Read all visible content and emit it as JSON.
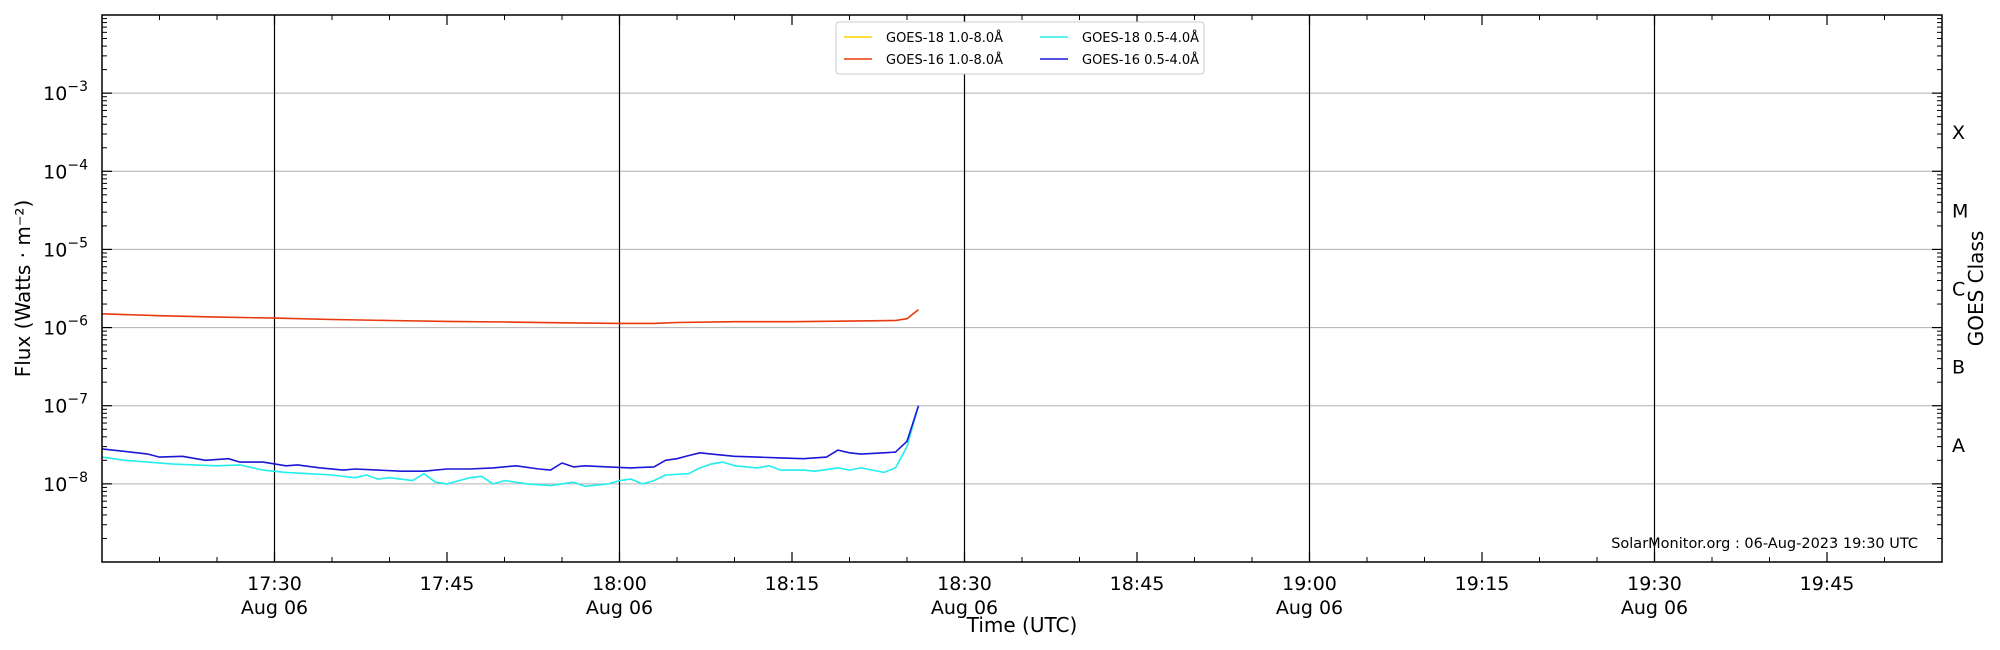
{
  "chart_data": {
    "type": "line",
    "xlabel": "Time (UTC)",
    "ylabel": "Flux (Watts · m⁻²)",
    "y2label": "GOES Class",
    "yscale": "log",
    "ylim": [
      1e-09,
      0.01
    ],
    "xlim": [
      "17:15",
      "19:55"
    ],
    "grid": "horizontal at decades, vertical at half-hours",
    "legend_position": "top-center",
    "x_ticks": [
      {
        "time": "17:30",
        "label": "17:30",
        "sublabel": "Aug 06"
      },
      {
        "time": "17:45",
        "label": "17:45",
        "sublabel": ""
      },
      {
        "time": "18:00",
        "label": "18:00",
        "sublabel": "Aug 06"
      },
      {
        "time": "18:15",
        "label": "18:15",
        "sublabel": ""
      },
      {
        "time": "18:30",
        "label": "18:30",
        "sublabel": "Aug 06"
      },
      {
        "time": "18:45",
        "label": "18:45",
        "sublabel": ""
      },
      {
        "time": "19:00",
        "label": "19:00",
        "sublabel": "Aug 06"
      },
      {
        "time": "19:15",
        "label": "19:15",
        "sublabel": ""
      },
      {
        "time": "19:30",
        "label": "19:30",
        "sublabel": "Aug 06"
      },
      {
        "time": "19:45",
        "label": "19:45",
        "sublabel": ""
      }
    ],
    "vertical_lines": [
      "17:30",
      "18:00",
      "18:30",
      "19:00",
      "19:30"
    ],
    "y_ticks": [
      {
        "value": 1e-08,
        "base": "10",
        "exp": "−8"
      },
      {
        "value": 1e-07,
        "base": "10",
        "exp": "−7"
      },
      {
        "value": 1e-06,
        "base": "10",
        "exp": "−6"
      },
      {
        "value": 1e-05,
        "base": "10",
        "exp": "−5"
      },
      {
        "value": 0.0001,
        "base": "10",
        "exp": "−4"
      },
      {
        "value": 0.001,
        "base": "10",
        "exp": "−3"
      }
    ],
    "goes_classes": [
      {
        "label": "A",
        "value": 3.16e-08
      },
      {
        "label": "B",
        "value": 3.16e-07
      },
      {
        "label": "C",
        "value": 3.16e-06
      },
      {
        "label": "M",
        "value": 3.16e-05
      },
      {
        "label": "X",
        "value": 0.000316
      }
    ],
    "annotation": "SolarMonitor.org : 06-Aug-2023 19:30 UTC",
    "series": [
      {
        "name": "GOES-18 1.0-8.0Å",
        "color": "#ffd000",
        "points": []
      },
      {
        "name": "GOES-16 1.0-8.0Å",
        "color": "#e8380d",
        "points": [
          [
            "17:15",
            1.5e-06
          ],
          [
            "17:20",
            1.42e-06
          ],
          [
            "17:25",
            1.36e-06
          ],
          [
            "17:30",
            1.32e-06
          ],
          [
            "17:35",
            1.27e-06
          ],
          [
            "17:40",
            1.23e-06
          ],
          [
            "17:45",
            1.2e-06
          ],
          [
            "17:50",
            1.18e-06
          ],
          [
            "17:55",
            1.15e-06
          ],
          [
            "18:00",
            1.13e-06
          ],
          [
            "18:03",
            1.13e-06
          ],
          [
            "18:05",
            1.16e-06
          ],
          [
            "18:10",
            1.19e-06
          ],
          [
            "18:15",
            1.19e-06
          ],
          [
            "18:20",
            1.21e-06
          ],
          [
            "18:24",
            1.23e-06
          ],
          [
            "18:25",
            1.3e-06
          ],
          [
            "18:26",
            1.7e-06
          ]
        ]
      },
      {
        "name": "GOES-18 0.5-4.0Å",
        "color": "#22eeee",
        "points": [
          [
            "17:15",
            2.2e-08
          ],
          [
            "17:17",
            2e-08
          ],
          [
            "17:19",
            1.9e-08
          ],
          [
            "17:21",
            1.8e-08
          ],
          [
            "17:23",
            1.75e-08
          ],
          [
            "17:25",
            1.7e-08
          ],
          [
            "17:27",
            1.75e-08
          ],
          [
            "17:29",
            1.5e-08
          ],
          [
            "17:31",
            1.4e-08
          ],
          [
            "17:33",
            1.35e-08
          ],
          [
            "17:35",
            1.3e-08
          ],
          [
            "17:37",
            1.2e-08
          ],
          [
            "17:38",
            1.3e-08
          ],
          [
            "17:39",
            1.15e-08
          ],
          [
            "17:40",
            1.2e-08
          ],
          [
            "17:42",
            1.1e-08
          ],
          [
            "17:43",
            1.35e-08
          ],
          [
            "17:44",
            1.05e-08
          ],
          [
            "17:45",
            1e-08
          ],
          [
            "17:47",
            1.2e-08
          ],
          [
            "17:48",
            1.25e-08
          ],
          [
            "17:49",
            1e-08
          ],
          [
            "17:50",
            1.1e-08
          ],
          [
            "17:52",
            1e-08
          ],
          [
            "17:54",
            9.5e-09
          ],
          [
            "17:56",
            1.05e-08
          ],
          [
            "17:57",
            9.3e-09
          ],
          [
            "17:59",
            1e-08
          ],
          [
            "18:00",
            1.1e-08
          ],
          [
            "18:01",
            1.15e-08
          ],
          [
            "18:02",
            1e-08
          ],
          [
            "18:03",
            1.1e-08
          ],
          [
            "18:04",
            1.3e-08
          ],
          [
            "18:06",
            1.35e-08
          ],
          [
            "18:07",
            1.6e-08
          ],
          [
            "18:08",
            1.8e-08
          ],
          [
            "18:09",
            1.9e-08
          ],
          [
            "18:10",
            1.7e-08
          ],
          [
            "18:12",
            1.6e-08
          ],
          [
            "18:13",
            1.7e-08
          ],
          [
            "18:14",
            1.5e-08
          ],
          [
            "18:16",
            1.5e-08
          ],
          [
            "18:17",
            1.45e-08
          ],
          [
            "18:19",
            1.6e-08
          ],
          [
            "18:20",
            1.5e-08
          ],
          [
            "18:21",
            1.6e-08
          ],
          [
            "18:22",
            1.5e-08
          ],
          [
            "18:23",
            1.4e-08
          ],
          [
            "18:24",
            1.6e-08
          ],
          [
            "18:25",
            3e-08
          ],
          [
            "18:26",
            1e-07
          ]
        ]
      },
      {
        "name": "GOES-16 0.5-4.0Å",
        "color": "#1c17d6",
        "points": [
          [
            "17:15",
            2.8e-08
          ],
          [
            "17:17",
            2.6e-08
          ],
          [
            "17:19",
            2.4e-08
          ],
          [
            "17:20",
            2.2e-08
          ],
          [
            "17:22",
            2.25e-08
          ],
          [
            "17:24",
            2e-08
          ],
          [
            "17:26",
            2.1e-08
          ],
          [
            "17:27",
            1.9e-08
          ],
          [
            "17:29",
            1.9e-08
          ],
          [
            "17:30",
            1.8e-08
          ],
          [
            "17:31",
            1.7e-08
          ],
          [
            "17:32",
            1.75e-08
          ],
          [
            "17:34",
            1.6e-08
          ],
          [
            "17:36",
            1.5e-08
          ],
          [
            "17:37",
            1.55e-08
          ],
          [
            "17:39",
            1.5e-08
          ],
          [
            "17:41",
            1.45e-08
          ],
          [
            "17:43",
            1.45e-08
          ],
          [
            "17:45",
            1.55e-08
          ],
          [
            "17:47",
            1.55e-08
          ],
          [
            "17:49",
            1.6e-08
          ],
          [
            "17:51",
            1.7e-08
          ],
          [
            "17:53",
            1.55e-08
          ],
          [
            "17:54",
            1.5e-08
          ],
          [
            "17:55",
            1.85e-08
          ],
          [
            "17:56",
            1.65e-08
          ],
          [
            "17:57",
            1.7e-08
          ],
          [
            "17:59",
            1.65e-08
          ],
          [
            "18:01",
            1.6e-08
          ],
          [
            "18:03",
            1.65e-08
          ],
          [
            "18:04",
            2e-08
          ],
          [
            "18:05",
            2.1e-08
          ],
          [
            "18:06",
            2.3e-08
          ],
          [
            "18:07",
            2.5e-08
          ],
          [
            "18:08",
            2.4e-08
          ],
          [
            "18:10",
            2.25e-08
          ],
          [
            "18:12",
            2.2e-08
          ],
          [
            "18:14",
            2.15e-08
          ],
          [
            "18:16",
            2.1e-08
          ],
          [
            "18:18",
            2.2e-08
          ],
          [
            "18:19",
            2.7e-08
          ],
          [
            "18:20",
            2.5e-08
          ],
          [
            "18:21",
            2.4e-08
          ],
          [
            "18:23",
            2.5e-08
          ],
          [
            "18:24",
            2.55e-08
          ],
          [
            "18:25",
            3.5e-08
          ],
          [
            "18:26",
            1e-07
          ]
        ]
      }
    ]
  }
}
